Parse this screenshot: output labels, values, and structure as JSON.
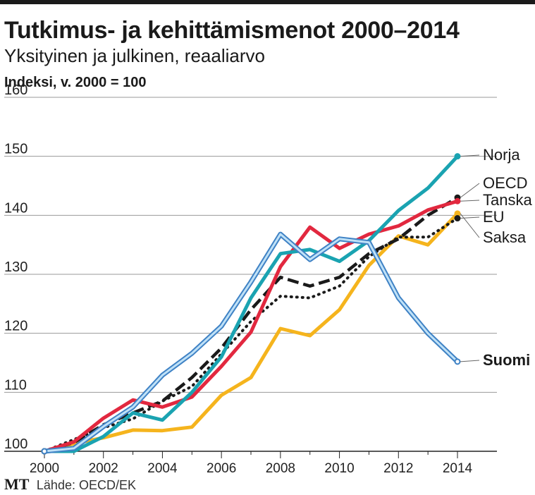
{
  "header": {
    "title": "Tutkimus- ja kehittämismenot 2000–2014",
    "subtitle": "Yksityinen ja julkinen, reaaliarvo",
    "unit_label": "Indeksi, v. 2000 = 100"
  },
  "footer": {
    "logo": "MT",
    "source": "Lähde: OECD/EK"
  },
  "chart_data": {
    "type": "line",
    "title": "Tutkimus- ja kehittämismenot 2000–2014",
    "subtitle": "Yksityinen ja julkinen, reaaliarvo",
    "ylabel": "Indeksi, v. 2000 = 100",
    "xlabel": "",
    "x": [
      2000,
      2001,
      2002,
      2003,
      2004,
      2005,
      2006,
      2007,
      2008,
      2009,
      2010,
      2011,
      2012,
      2013,
      2014
    ],
    "xticks": [
      "2000",
      "2002",
      "2004",
      "2006",
      "2008",
      "2010",
      "2012",
      "2014"
    ],
    "yticks": [
      100,
      110,
      120,
      130,
      140,
      150,
      160
    ],
    "ylim": [
      100,
      160
    ],
    "grid": true,
    "legend": "inline labels at right end of lines",
    "series": [
      {
        "name": "Norja",
        "color": "#1aa3b1",
        "style": "solid",
        "values": [
          100,
          100,
          102.5,
          106.5,
          105.3,
          110,
          116,
          126,
          133.5,
          134.2,
          132.2,
          135.7,
          140.8,
          144.6,
          150
        ]
      },
      {
        "name": "OECD",
        "color": "#1a1a1a",
        "style": "dashed",
        "values": [
          100,
          101.5,
          104.5,
          106.5,
          108.5,
          112.5,
          117.5,
          124,
          129.5,
          128,
          129.5,
          133.5,
          136,
          140,
          143
        ]
      },
      {
        "name": "Tanska",
        "color": "#e2283f",
        "style": "solid",
        "values": [
          100,
          101.6,
          105.6,
          108.7,
          107.5,
          109.2,
          114.4,
          120.2,
          131.3,
          138,
          134.4,
          136.8,
          138.2,
          140.9,
          142.4
        ]
      },
      {
        "name": "EU",
        "color": "#1a1a1a",
        "style": "dotted",
        "values": [
          100,
          102,
          104,
          105.5,
          108.5,
          111,
          116.5,
          122,
          126.3,
          126,
          128,
          133,
          136.3,
          136.3,
          139.5
        ]
      },
      {
        "name": "Saksa",
        "color": "#f5b41d",
        "style": "solid",
        "values": [
          100,
          101.3,
          102.3,
          103.6,
          103.5,
          104.1,
          109.5,
          112.5,
          120.8,
          119.6,
          124,
          131.5,
          136.5,
          135,
          140.3
        ]
      },
      {
        "name": "Suomi",
        "color": "#3f82c5",
        "style": "outlined",
        "values": [
          100,
          100.5,
          104.2,
          107.5,
          112.9,
          116.6,
          121.2,
          128.7,
          136.8,
          132.5,
          136,
          135.4,
          126,
          120,
          115.2
        ]
      }
    ]
  }
}
